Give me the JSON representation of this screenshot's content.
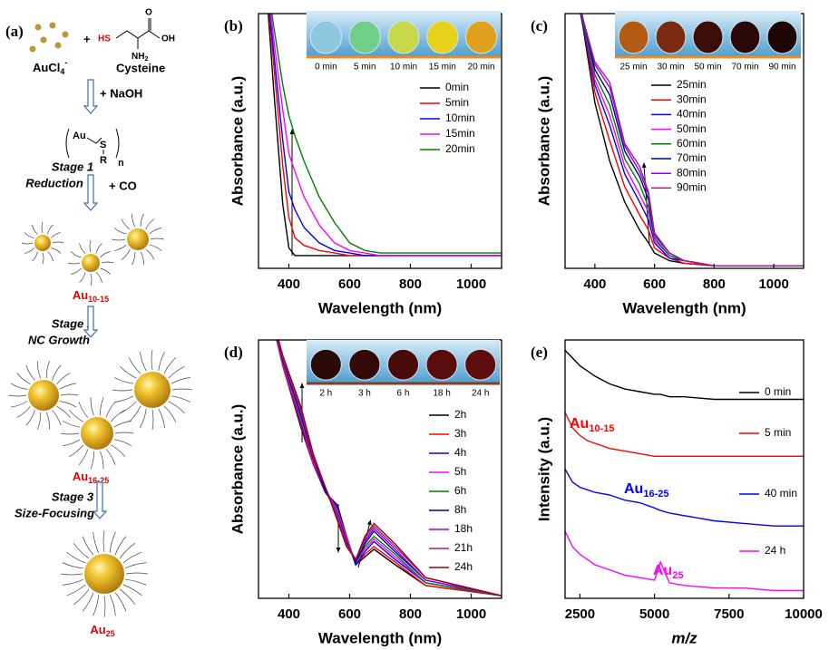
{
  "scheme": {
    "label": "(a)",
    "precursor": {
      "text": "AuCl",
      "sub": "4",
      "sup": "-"
    },
    "plus": "+",
    "cysteine": {
      "name": "Cysteine",
      "hs": "HS",
      "nh2": {
        "text": "NH",
        "sub": "2"
      },
      "oh": "OH",
      "o": "O"
    },
    "step1": "+ NaOH",
    "polymer": {
      "au": "Au",
      "s": "S",
      "r": "R",
      "n": "n"
    },
    "stages": [
      {
        "title": "Stage 1",
        "name": "Reduction",
        "reagent": "+ CO",
        "product": {
          "text": "Au",
          "sub": "10-15"
        }
      },
      {
        "title": "Stage 2",
        "name": "NC Growth",
        "product": {
          "text": "Au",
          "sub": "16-25"
        }
      },
      {
        "title": "Stage 3",
        "name": "Size-Focusing",
        "product": {
          "text": "Au",
          "sub": "25"
        }
      }
    ]
  },
  "chart_data": [
    {
      "type": "line",
      "label": "(b)",
      "xlabel": "Wavelength (nm)",
      "ylabel": "Absorbance (a.u.)",
      "xlim": [
        300,
        1100
      ],
      "ylim": [
        0,
        1
      ],
      "xticks": [
        400,
        600,
        800,
        1000
      ],
      "x": [
        320,
        350,
        380,
        400,
        420,
        450,
        500,
        550,
        600,
        650,
        700,
        800,
        900,
        1000,
        1100
      ],
      "series": [
        {
          "name": "0min",
          "color": "#000000",
          "values": [
            1.2,
            0.7,
            0.25,
            0.08,
            0.05,
            0.05,
            0.05,
            0.05,
            0.05,
            0.05,
            0.05,
            0.05,
            0.05,
            0.05,
            0.05
          ]
        },
        {
          "name": "5min",
          "color": "#ff0000",
          "values": [
            1.2,
            0.8,
            0.4,
            0.2,
            0.12,
            0.09,
            0.07,
            0.06,
            0.05,
            0.05,
            0.05,
            0.05,
            0.05,
            0.05,
            0.05
          ]
        },
        {
          "name": "10min",
          "color": "#0000ff",
          "values": [
            1.2,
            0.85,
            0.5,
            0.3,
            0.23,
            0.16,
            0.1,
            0.07,
            0.06,
            0.05,
            0.05,
            0.05,
            0.05,
            0.05,
            0.05
          ]
        },
        {
          "name": "15min",
          "color": "#ff00ff",
          "values": [
            1.2,
            0.9,
            0.62,
            0.45,
            0.38,
            0.28,
            0.17,
            0.1,
            0.07,
            0.06,
            0.05,
            0.05,
            0.05,
            0.05,
            0.05
          ]
        },
        {
          "name": "20min",
          "color": "#008000",
          "values": [
            1.2,
            0.95,
            0.72,
            0.6,
            0.52,
            0.42,
            0.28,
            0.18,
            0.1,
            0.07,
            0.06,
            0.06,
            0.06,
            0.06,
            0.06
          ]
        }
      ],
      "inset": {
        "labels": [
          "0 min",
          "5 min",
          "10 min",
          "15 min",
          "20 min"
        ],
        "colors": [
          "#8fc7e0",
          "#6fcf8a",
          "#c7d84a",
          "#e6d21a",
          "#e0a21e"
        ]
      }
    },
    {
      "type": "line",
      "label": "(c)",
      "xlabel": "Wavelength (nm)",
      "ylabel": "Absorbance (a.u.)",
      "xlim": [
        300,
        1100
      ],
      "ylim": [
        0,
        1
      ],
      "xticks": [
        400,
        600,
        800,
        1000
      ],
      "x": [
        320,
        360,
        400,
        450,
        500,
        550,
        580,
        600,
        650,
        700,
        800,
        900,
        1100
      ],
      "series": [
        {
          "name": "25min",
          "color": "#000000",
          "values": [
            1.2,
            0.95,
            0.65,
            0.42,
            0.26,
            0.15,
            0.1,
            0.06,
            0.03,
            0.02,
            0.01,
            0.01,
            0.01
          ]
        },
        {
          "name": "30min",
          "color": "#ff0000",
          "values": [
            1.2,
            0.96,
            0.69,
            0.5,
            0.32,
            0.21,
            0.15,
            0.08,
            0.04,
            0.02,
            0.01,
            0.01,
            0.01
          ]
        },
        {
          "name": "40min",
          "color": "#0000ff",
          "values": [
            1.2,
            0.96,
            0.72,
            0.56,
            0.37,
            0.26,
            0.19,
            0.1,
            0.04,
            0.03,
            0.01,
            0.01,
            0.01
          ]
        },
        {
          "name": "50min",
          "color": "#ff00ff",
          "values": [
            1.2,
            0.97,
            0.74,
            0.6,
            0.4,
            0.29,
            0.22,
            0.11,
            0.05,
            0.03,
            0.01,
            0.01,
            0.01
          ]
        },
        {
          "name": "60min",
          "color": "#008000",
          "values": [
            1.2,
            0.97,
            0.76,
            0.64,
            0.43,
            0.33,
            0.24,
            0.12,
            0.05,
            0.03,
            0.01,
            0.01,
            0.01
          ]
        },
        {
          "name": "70min",
          "color": "#000080",
          "values": [
            1.2,
            0.98,
            0.78,
            0.68,
            0.46,
            0.36,
            0.27,
            0.13,
            0.06,
            0.03,
            0.01,
            0.01,
            0.01
          ]
        },
        {
          "name": "80min",
          "color": "#8a00ff",
          "values": [
            1.2,
            0.98,
            0.8,
            0.71,
            0.48,
            0.38,
            0.29,
            0.13,
            0.06,
            0.03,
            0.01,
            0.01,
            0.01
          ]
        },
        {
          "name": "90min",
          "color": "#a0208a",
          "values": [
            1.2,
            0.98,
            0.81,
            0.73,
            0.49,
            0.4,
            0.3,
            0.14,
            0.06,
            0.03,
            0.01,
            0.01,
            0.01
          ]
        }
      ],
      "inset": {
        "labels": [
          "25 min",
          "30 min",
          "50 min",
          "70 min",
          "90 min"
        ],
        "colors": [
          "#b05a14",
          "#7a2a10",
          "#3a0d08",
          "#2a0806",
          "#1e0604"
        ]
      }
    },
    {
      "type": "line",
      "label": "(d)",
      "xlabel": "Wavelength (nm)",
      "ylabel": "Absorbance (a.u.)",
      "xlim": [
        300,
        1100
      ],
      "ylim": [
        0,
        1
      ],
      "xticks": [
        400,
        600,
        800,
        1000
      ],
      "x": [
        320,
        380,
        440,
        480,
        520,
        560,
        590,
        620,
        650,
        680,
        750,
        850,
        1100
      ],
      "series": [
        {
          "name": "2h",
          "color": "#000000",
          "values": [
            1.2,
            0.9,
            0.66,
            0.52,
            0.41,
            0.36,
            0.24,
            0.13,
            0.16,
            0.19,
            0.13,
            0.05,
            0.01
          ]
        },
        {
          "name": "3h",
          "color": "#ff0000",
          "values": [
            1.2,
            0.9,
            0.67,
            0.52,
            0.41,
            0.35,
            0.24,
            0.13,
            0.17,
            0.2,
            0.14,
            0.05,
            0.01
          ]
        },
        {
          "name": "4h",
          "color": "#0000ff",
          "values": [
            1.2,
            0.91,
            0.68,
            0.53,
            0.41,
            0.35,
            0.23,
            0.13,
            0.18,
            0.22,
            0.15,
            0.06,
            0.01
          ]
        },
        {
          "name": "5h",
          "color": "#ff00ff",
          "values": [
            1.2,
            0.91,
            0.69,
            0.53,
            0.42,
            0.34,
            0.23,
            0.14,
            0.19,
            0.23,
            0.16,
            0.06,
            0.01
          ]
        },
        {
          "name": "6h",
          "color": "#008000",
          "values": [
            1.2,
            0.92,
            0.7,
            0.54,
            0.42,
            0.33,
            0.22,
            0.14,
            0.2,
            0.24,
            0.17,
            0.06,
            0.01
          ]
        },
        {
          "name": "8h",
          "color": "#000080",
          "values": [
            1.2,
            0.92,
            0.71,
            0.54,
            0.42,
            0.32,
            0.22,
            0.14,
            0.21,
            0.26,
            0.18,
            0.07,
            0.01
          ]
        },
        {
          "name": "18h",
          "color": "#8a00ff",
          "values": [
            1.2,
            0.93,
            0.72,
            0.55,
            0.43,
            0.32,
            0.21,
            0.15,
            0.22,
            0.27,
            0.19,
            0.07,
            0.01
          ]
        },
        {
          "name": "21h",
          "color": "#a0208a",
          "values": [
            1.2,
            0.93,
            0.73,
            0.55,
            0.43,
            0.31,
            0.21,
            0.15,
            0.23,
            0.28,
            0.2,
            0.08,
            0.01
          ]
        },
        {
          "name": "24h",
          "color": "#a00000",
          "values": [
            1.2,
            0.94,
            0.74,
            0.56,
            0.43,
            0.3,
            0.2,
            0.15,
            0.24,
            0.29,
            0.21,
            0.08,
            0.01
          ]
        }
      ],
      "inset": {
        "labels": [
          "2 h",
          "3 h",
          "6 h",
          "18 h",
          "24 h"
        ],
        "colors": [
          "#2a0a06",
          "#33090a",
          "#4a0a0a",
          "#580c0c",
          "#5e0e0c"
        ]
      }
    },
    {
      "type": "line",
      "label": "(e)",
      "xlabel": "m/z",
      "ylabel": "Intensity (a.u.)",
      "xlim": [
        2000,
        10000
      ],
      "ylim": [
        0,
        1
      ],
      "xticks": [
        2500,
        5000,
        7500,
        10000
      ],
      "x": [
        2000,
        2250,
        2500,
        2750,
        3000,
        3500,
        4000,
        4500,
        5000,
        5200,
        5500,
        6000,
        7000,
        8000,
        9000,
        10000
      ],
      "series": [
        {
          "name": "0 min",
          "color": "#000000",
          "values": [
            0.96,
            0.93,
            0.9,
            0.88,
            0.86,
            0.83,
            0.81,
            0.8,
            0.79,
            0.79,
            0.78,
            0.78,
            0.77,
            0.77,
            0.77,
            0.77
          ]
        },
        {
          "name": "5 min",
          "color": "#ff0000",
          "values": [
            0.72,
            0.66,
            0.63,
            0.61,
            0.6,
            0.58,
            0.57,
            0.56,
            0.55,
            0.55,
            0.55,
            0.55,
            0.55,
            0.55,
            0.55,
            0.55
          ]
        },
        {
          "name": "40 min",
          "color": "#0000ff",
          "values": [
            0.5,
            0.45,
            0.43,
            0.42,
            0.41,
            0.4,
            0.38,
            0.37,
            0.35,
            0.34,
            0.33,
            0.32,
            0.3,
            0.29,
            0.28,
            0.28
          ]
        },
        {
          "name": "24 h",
          "color": "#ff00ff",
          "values": [
            0.26,
            0.2,
            0.17,
            0.15,
            0.13,
            0.11,
            0.09,
            0.08,
            0.07,
            0.14,
            0.06,
            0.05,
            0.04,
            0.04,
            0.03,
            0.03
          ]
        }
      ],
      "annotations": [
        {
          "text": "Au",
          "sub": "10-15",
          "color": "#ff0000"
        },
        {
          "text": "Au",
          "sub": "16-25",
          "color": "#0000ff"
        },
        {
          "text": "Au",
          "sub": "25",
          "color": "#ff00ff"
        }
      ]
    }
  ]
}
